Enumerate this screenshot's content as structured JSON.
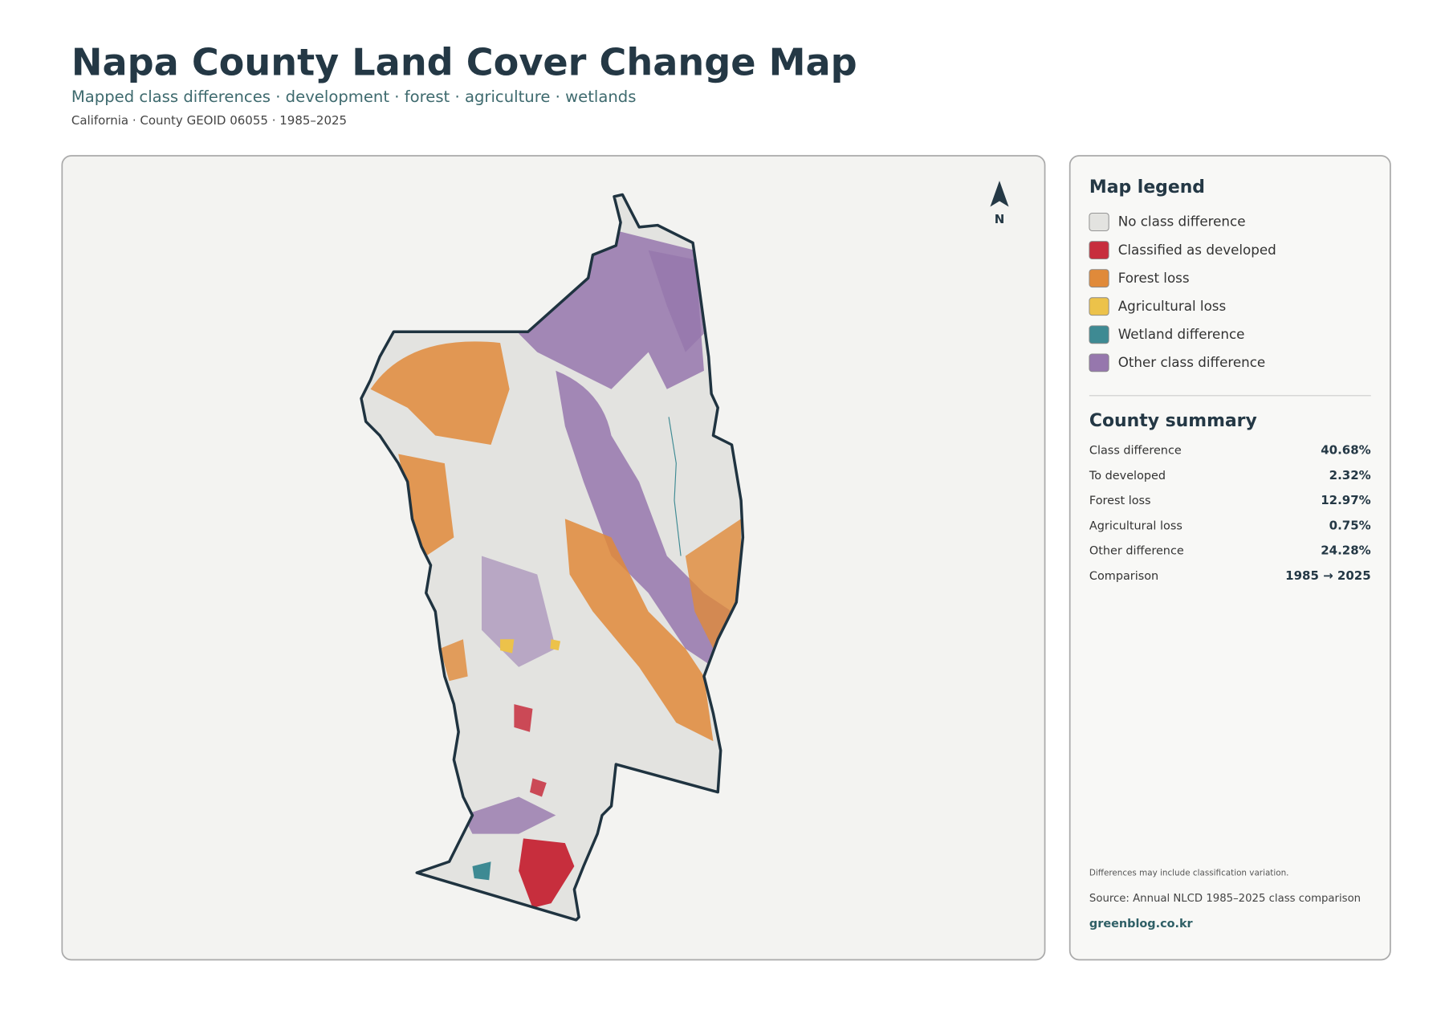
{
  "header": {
    "title": "Napa County Land Cover Change Map",
    "subtitle": "Mapped class differences · development · forest · agriculture · wetlands",
    "meta": "California · County GEOID 06055 · 1985–2025"
  },
  "map": {
    "north_label": "N"
  },
  "legend": {
    "title": "Map legend",
    "items": [
      {
        "label": "No class difference",
        "color": "#e3e3e0"
      },
      {
        "label": "Classified as developed",
        "color": "#c72e3d"
      },
      {
        "label": "Forest loss",
        "color": "#e08a3a"
      },
      {
        "label": "Agricultural loss",
        "color": "#ecc24a"
      },
      {
        "label": "Wetland difference",
        "color": "#3e8a93"
      },
      {
        "label": "Other class difference",
        "color": "#9677ad"
      }
    ]
  },
  "summary": {
    "title": "County summary",
    "rows": [
      {
        "label": "Class difference",
        "value": "40.68%"
      },
      {
        "label": "To developed",
        "value": "2.32%"
      },
      {
        "label": "Forest loss",
        "value": "12.97%"
      },
      {
        "label": "Agricultural loss",
        "value": "0.75%"
      },
      {
        "label": "Other difference",
        "value": "24.28%"
      },
      {
        "label": "Comparison",
        "value": "1985 → 2025"
      }
    ]
  },
  "footer": {
    "note": "Differences may include classification variation.",
    "source": "Source: Annual NLCD 1985–2025 class comparison",
    "site": "greenblog.co.kr"
  }
}
